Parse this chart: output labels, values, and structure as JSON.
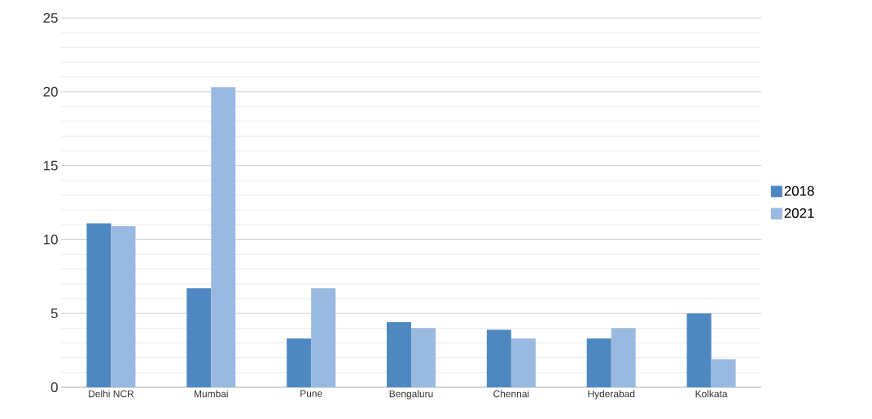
{
  "chart_data": {
    "type": "bar",
    "categories": [
      "Delhi NCR",
      "Mumbai",
      "Pune",
      "Bengaluru",
      "Chennai",
      "Hyderabad",
      "Kolkata"
    ],
    "series": [
      {
        "name": "2018",
        "color": "#4f88c0",
        "values": [
          11.1,
          6.7,
          3.3,
          4.4,
          3.9,
          3.3,
          5.0
        ]
      },
      {
        "name": "2021",
        "color": "#9ab9e0",
        "values": [
          10.9,
          20.3,
          6.7,
          4.0,
          3.3,
          4.0,
          1.9
        ]
      }
    ],
    "ylim": [
      0,
      25
    ],
    "yticks": [
      0,
      5,
      10,
      15,
      20,
      25
    ],
    "grid": "y",
    "legend": "right"
  }
}
